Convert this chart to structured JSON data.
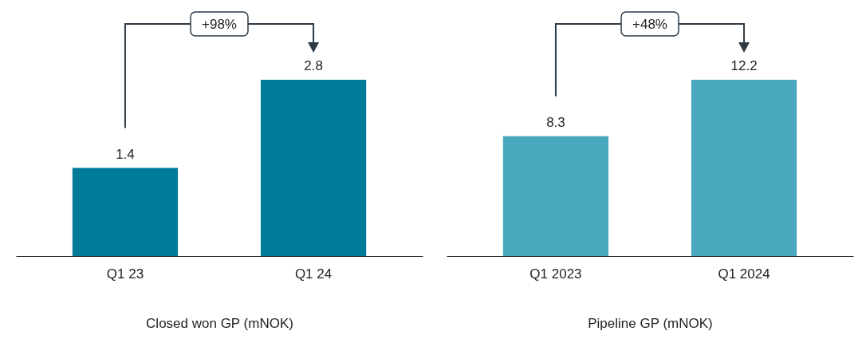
{
  "chart_data": [
    {
      "type": "bar",
      "categories": [
        "Q1 23",
        "Q1 24"
      ],
      "values": [
        1.4,
        2.8
      ],
      "color": "#007a99",
      "data_labels": true,
      "xlabel": "Closed won GP (mNOK)",
      "annotations": [
        "+98%"
      ]
    },
    {
      "type": "bar",
      "categories": [
        "Q1 2023",
        "Q1 2024"
      ],
      "values": [
        8.3,
        12.2
      ],
      "color": "#4aa8be",
      "data_labels": true,
      "xlabel": "Pipeline GP (mNOK)",
      "annotations": [
        "+48%"
      ]
    }
  ]
}
